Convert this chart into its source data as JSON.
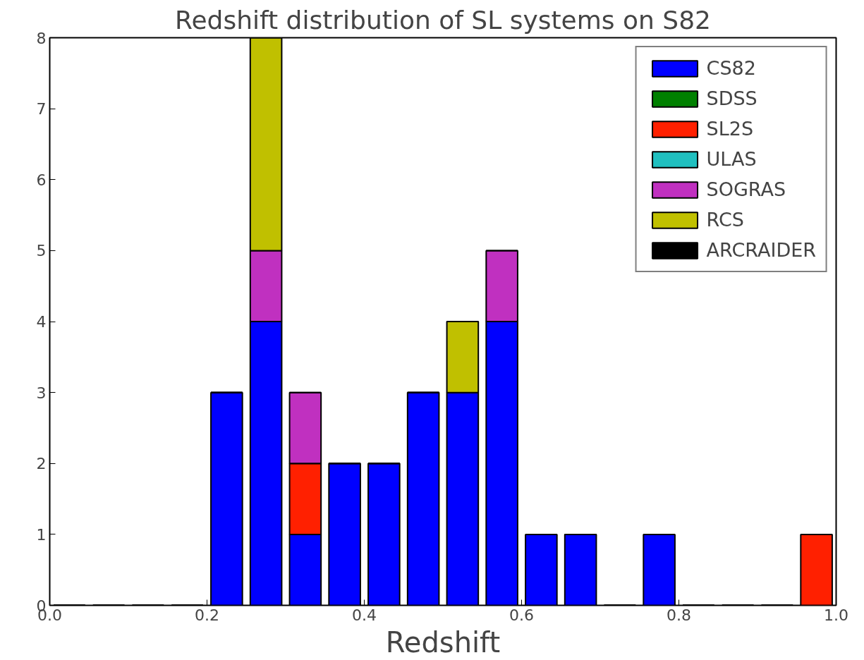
{
  "chart_data": {
    "type": "bar",
    "title": "Redshift distribution of SL systems on S82",
    "xlabel": "Redshift",
    "x": [
      0.025,
      0.075,
      0.125,
      0.175,
      0.225,
      0.275,
      0.325,
      0.375,
      0.425,
      0.475,
      0.525,
      0.575,
      0.625,
      0.675,
      0.725,
      0.775,
      0.825,
      0.875,
      0.925,
      0.975
    ],
    "stacked": true,
    "series": [
      {
        "name": "CS82",
        "color": "#0000ff",
        "values": [
          0,
          0,
          0,
          0,
          3,
          4,
          1,
          2,
          2,
          3,
          3,
          4,
          1,
          1,
          0,
          1,
          0,
          0,
          0,
          0
        ]
      },
      {
        "name": "SDSS",
        "color": "#008000",
        "values": [
          0,
          0,
          0,
          0,
          0,
          0,
          0,
          0,
          0,
          0,
          0,
          0,
          0,
          0,
          0,
          0,
          0,
          0,
          0,
          0
        ]
      },
      {
        "name": "SL2S",
        "color": "#ff2000",
        "values": [
          0,
          0,
          0,
          0,
          0,
          0,
          1,
          0,
          0,
          0,
          0,
          0,
          0,
          0,
          0,
          0,
          0,
          0,
          0,
          1
        ]
      },
      {
        "name": "ULAS",
        "color": "#20c0c0",
        "values": [
          0,
          0,
          0,
          0,
          0,
          0,
          0,
          0,
          0,
          0,
          0,
          0,
          0,
          0,
          0,
          0,
          0,
          0,
          0,
          0
        ]
      },
      {
        "name": "SOGRAS",
        "color": "#c030c0",
        "values": [
          0,
          0,
          0,
          0,
          0,
          1,
          1,
          0,
          0,
          0,
          0,
          1,
          0,
          0,
          0,
          0,
          0,
          0,
          0,
          0
        ]
      },
      {
        "name": "RCS",
        "color": "#c0c000",
        "values": [
          0,
          0,
          0,
          0,
          0,
          3,
          0,
          0,
          0,
          0,
          1,
          0,
          0,
          0,
          0,
          0,
          0,
          0,
          0,
          0
        ]
      },
      {
        "name": "ARCRAIDER",
        "color": "#000000",
        "values": [
          0,
          0,
          0,
          0,
          0,
          0,
          0,
          0,
          0,
          0,
          0,
          0,
          0,
          0,
          0,
          0,
          0,
          0,
          0,
          0
        ]
      }
    ],
    "xlim": [
      0.0,
      1.0
    ],
    "ylim": [
      0,
      8
    ],
    "xticks": [
      {
        "value": 0.0,
        "label": "0.0"
      },
      {
        "value": 0.2,
        "label": "0.2"
      },
      {
        "value": 0.4,
        "label": "0.4"
      },
      {
        "value": 0.6,
        "label": "0.6"
      },
      {
        "value": 0.8,
        "label": "0.8"
      },
      {
        "value": 1.0,
        "label": "1.0"
      }
    ],
    "yticks": [
      0,
      1,
      2,
      3,
      4,
      5,
      6,
      7,
      8
    ],
    "legend": "top right",
    "grid": false
  }
}
